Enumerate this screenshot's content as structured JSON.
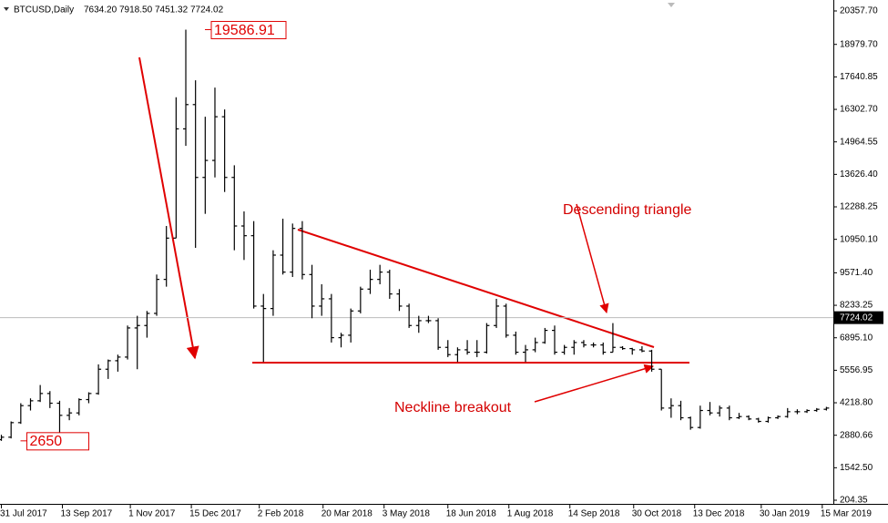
{
  "header": {
    "symbol": "BTCUSD,Daily",
    "open": "7634.20",
    "high": "7918.50",
    "low": "7451.32",
    "close": "7724.02"
  },
  "chart_data": {
    "type": "ohlc",
    "color": "#000000",
    "x": [
      "2017-07-31",
      "2017-08-07",
      "2017-08-14",
      "2017-08-21",
      "2017-08-28",
      "2017-09-04",
      "2017-09-11",
      "2017-09-18",
      "2017-09-25",
      "2017-10-02",
      "2017-10-09",
      "2017-10-16",
      "2017-10-23",
      "2017-10-30",
      "2017-11-06",
      "2017-11-13",
      "2017-11-20",
      "2017-11-27",
      "2017-12-04",
      "2017-12-11",
      "2017-12-18",
      "2017-12-25",
      "2018-01-01",
      "2018-01-08",
      "2018-01-15",
      "2018-01-22",
      "2018-01-29",
      "2018-02-05",
      "2018-02-12",
      "2018-02-19",
      "2018-02-26",
      "2018-03-05",
      "2018-03-12",
      "2018-03-19",
      "2018-03-26",
      "2018-04-02",
      "2018-04-09",
      "2018-04-16",
      "2018-04-23",
      "2018-04-30",
      "2018-05-07",
      "2018-05-14",
      "2018-05-21",
      "2018-05-28",
      "2018-06-04",
      "2018-06-11",
      "2018-06-18",
      "2018-06-25",
      "2018-07-02",
      "2018-07-09",
      "2018-07-16",
      "2018-07-23",
      "2018-07-30",
      "2018-08-06",
      "2018-08-13",
      "2018-08-20",
      "2018-08-27",
      "2018-09-03",
      "2018-09-10",
      "2018-09-17",
      "2018-09-24",
      "2018-10-01",
      "2018-10-08",
      "2018-10-15",
      "2018-10-22",
      "2018-10-29",
      "2018-11-05",
      "2018-11-12",
      "2018-11-19",
      "2018-11-26",
      "2018-12-03",
      "2018-12-10",
      "2018-12-17",
      "2018-12-24",
      "2018-12-31",
      "2019-01-07",
      "2019-01-14",
      "2019-01-21",
      "2019-01-28",
      "2019-02-04",
      "2019-02-11",
      "2019-02-18",
      "2019-02-25",
      "2019-03-04",
      "2019-03-11",
      "2019-03-18"
    ],
    "open": [
      2700,
      2800,
      3400,
      4100,
      4300,
      4600,
      4200,
      3700,
      3800,
      4350,
      4600,
      5600,
      5950,
      6100,
      7300,
      7400,
      7900,
      9300,
      11000,
      15500,
      16500,
      13500,
      14200,
      16000,
      13500,
      11500,
      11100,
      8200,
      8100,
      10300,
      9600,
      11400,
      9500,
      8200,
      8500,
      6900,
      7000,
      8000,
      8900,
      9300,
      9600,
      8700,
      8200,
      7400,
      7600,
      7600,
      6500,
      6200,
      6400,
      6300,
      6300,
      7400,
      8200,
      7000,
      6300,
      6400,
      6700,
      7200,
      6300,
      6500,
      6700,
      6600,
      6600,
      6300,
      6500,
      6450,
      6400,
      6350,
      5600,
      4000,
      4100,
      3600,
      3200,
      3900,
      3800,
      4000,
      3600,
      3650,
      3550,
      3450,
      3600,
      3650,
      3850,
      3850,
      3900,
      3950
    ],
    "high": [
      2900,
      3450,
      4200,
      4400,
      4950,
      4700,
      4300,
      4000,
      4400,
      4650,
      5800,
      6000,
      6200,
      7400,
      7800,
      8000,
      9500,
      11500,
      16800,
      19586.91,
      17500,
      16000,
      17200,
      16300,
      14000,
      12100,
      11700,
      8700,
      10500,
      11800,
      11600,
      11700,
      9900,
      9100,
      8700,
      7100,
      8100,
      9000,
      9700,
      9900,
      9700,
      8900,
      8300,
      7800,
      7800,
      7700,
      6800,
      6500,
      6800,
      6800,
      7500,
      8500,
      8300,
      7150,
      6600,
      6900,
      7300,
      7400,
      6600,
      6800,
      6800,
      6700,
      6700,
      7500,
      6550,
      6480,
      6550,
      6400,
      5600,
      4400,
      4300,
      3650,
      4100,
      4250,
      4100,
      4100,
      3800,
      3700,
      3600,
      3650,
      3700,
      4000,
      3950,
      3950,
      4000,
      4050
    ],
    "low": [
      2650,
      2750,
      3350,
      3900,
      4250,
      4000,
      3000,
      3500,
      3700,
      4200,
      4550,
      5200,
      5500,
      6000,
      5600,
      6900,
      7800,
      9000,
      11000,
      14800,
      10600,
      12000,
      13500,
      12900,
      10500,
      10100,
      8100,
      5900,
      7800,
      9500,
      9400,
      9300,
      7700,
      7800,
      6700,
      6500,
      6700,
      7900,
      8700,
      9100,
      8500,
      8000,
      7300,
      7100,
      7500,
      6400,
      6100,
      5900,
      6200,
      6100,
      6250,
      7300,
      6900,
      6200,
      5900,
      6300,
      6650,
      6200,
      6200,
      6200,
      6500,
      6500,
      6200,
      6300,
      6400,
      6200,
      6300,
      5500,
      3900,
      3600,
      3500,
      3107.43,
      3150,
      3700,
      3650,
      3500,
      3550,
      3500,
      3400,
      3400,
      3550,
      3600,
      3750,
      3800,
      3850,
      3900
    ],
    "close": [
      2800,
      3400,
      4100,
      4300,
      4600,
      4200,
      3700,
      3800,
      4350,
      4600,
      5600,
      5950,
      6100,
      7300,
      7400,
      7900,
      9300,
      11000,
      15500,
      16500,
      13500,
      14200,
      16000,
      13500,
      11500,
      11100,
      8200,
      8100,
      10300,
      9600,
      11400,
      9500,
      8200,
      8500,
      6900,
      7000,
      8000,
      8900,
      9300,
      9600,
      8700,
      8200,
      7400,
      7600,
      7600,
      6500,
      6200,
      6400,
      6300,
      6300,
      7400,
      8200,
      7000,
      6300,
      6400,
      6700,
      7200,
      6300,
      6500,
      6700,
      6600,
      6600,
      6300,
      6500,
      6450,
      6400,
      6350,
      5600,
      4000,
      4100,
      3600,
      3200,
      3900,
      3800,
      4000,
      3600,
      3650,
      3550,
      3450,
      3600,
      3650,
      3850,
      3850,
      3900,
      3950,
      4000
    ],
    "last_price": 7724.02,
    "annotations": [
      "Descending triangle",
      "Neckline breakout"
    ],
    "xlim": [
      "2017-07-30",
      "2019-03-23"
    ],
    "xticks": [
      {
        "value": "2017-07-31",
        "label": "31 Jul 2017"
      },
      {
        "value": "2017-09-13",
        "label": "13 Sep 2017"
      },
      {
        "value": "2017-11-01",
        "label": "1 Nov 2017"
      },
      {
        "value": "2017-12-15",
        "label": "15 Dec 2017"
      },
      {
        "value": "2018-02-02",
        "label": "2 Feb 2018"
      },
      {
        "value": "2018-03-20",
        "label": "20 Mar 2018"
      },
      {
        "value": "2018-05-03",
        "label": "3 May 2018"
      },
      {
        "value": "2018-06-18",
        "label": "18 Jun 2018"
      },
      {
        "value": "2018-08-01",
        "label": "1 Aug 2018"
      },
      {
        "value": "2018-09-14",
        "label": "14 Sep 2018"
      },
      {
        "value": "2018-10-30",
        "label": "30 Oct 2018"
      },
      {
        "value": "2018-12-13",
        "label": "13 Dec 2018"
      },
      {
        "value": "2019-01-30",
        "label": "30 Jan 2019"
      },
      {
        "value": "2019-03-15",
        "label": "15 Mar 2019"
      }
    ],
    "ylim": [
      204.35,
      20357.7
    ],
    "yticks": [
      {
        "value": 20357.7,
        "label": "20357.70"
      },
      {
        "value": 18979.7,
        "label": "18979.70"
      },
      17640.85,
      {
        "value": 16302.7,
        "label": "16302.70"
      },
      14964.55,
      {
        "value": 13626.4,
        "label": "13626.40"
      },
      12288.25,
      {
        "value": 10950.1,
        "label": "10950.10"
      },
      {
        "value": 9571.4,
        "label": "9571.40"
      },
      8233.25,
      {
        "value": 6895.1,
        "label": "6895.10"
      },
      5556.95,
      {
        "value": 4218.8,
        "label": "4218.80"
      },
      2880.66,
      {
        "value": 1542.5,
        "label": "1542.50"
      },
      204.35
    ]
  }
}
